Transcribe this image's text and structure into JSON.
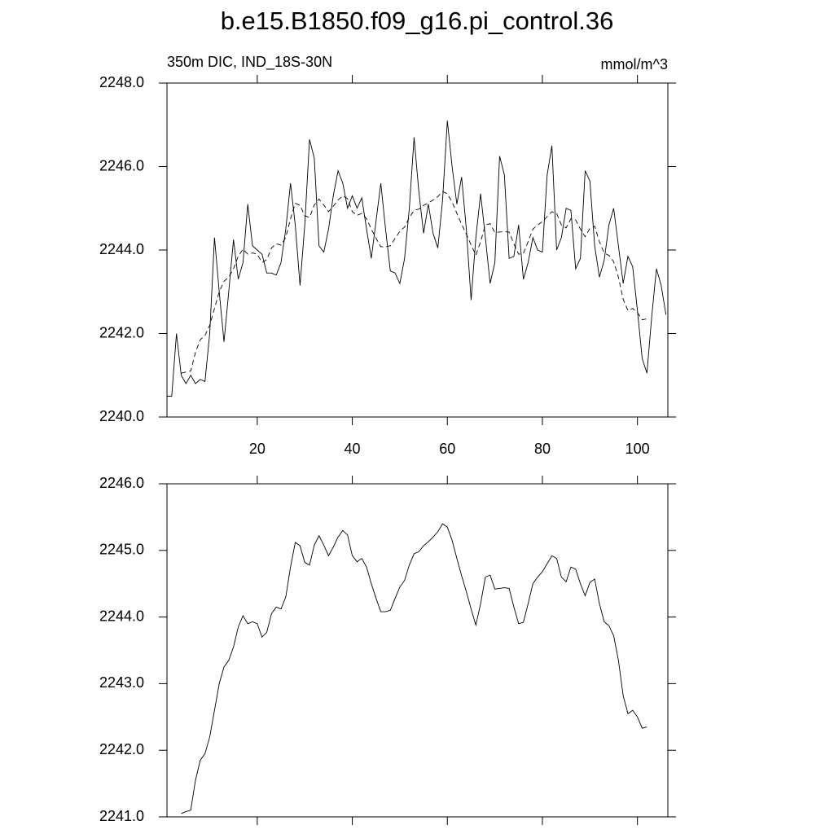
{
  "title": "b.e15.B1850.f09_g16.pi_control.36",
  "chart_data": [
    {
      "type": "line",
      "left_string": "350m DIC, IND_18S-30N",
      "right_string": "mmol/m^3",
      "x": [
        1,
        2,
        3,
        4,
        5,
        6,
        7,
        8,
        9,
        10,
        11,
        12,
        13,
        14,
        15,
        16,
        17,
        18,
        19,
        20,
        21,
        22,
        23,
        24,
        25,
        26,
        27,
        28,
        29,
        30,
        31,
        32,
        33,
        34,
        35,
        36,
        37,
        38,
        39,
        40,
        41,
        42,
        43,
        44,
        45,
        46,
        47,
        48,
        49,
        50,
        51,
        52,
        53,
        54,
        55,
        56,
        57,
        58,
        59,
        60,
        61,
        62,
        63,
        64,
        65,
        66,
        67,
        68,
        69,
        70,
        71,
        72,
        73,
        74,
        75,
        76,
        77,
        78,
        79,
        80,
        81,
        82,
        83,
        84,
        85,
        86,
        87,
        88,
        89,
        90,
        91,
        92,
        93,
        94,
        95,
        96,
        97,
        98,
        99,
        100,
        101,
        102,
        103,
        104,
        105,
        106
      ],
      "series": [
        {
          "color": "#000000",
          "dashed": false,
          "values": [
            2240.5,
            2240.5,
            2242.0,
            2241.0,
            2240.8,
            2241.0,
            2240.8,
            2240.9,
            2240.85,
            2242.0,
            2244.3,
            2243.0,
            2241.8,
            2243.0,
            2244.25,
            2243.3,
            2243.7,
            2245.1,
            2244.1,
            2244.0,
            2243.9,
            2243.45,
            2243.45,
            2243.4,
            2243.7,
            2244.5,
            2245.6,
            2244.6,
            2243.15,
            2244.6,
            2246.65,
            2246.2,
            2244.1,
            2243.95,
            2244.5,
            2245.3,
            2245.9,
            2245.6,
            2245.0,
            2245.3,
            2245.0,
            2245.25,
            2244.5,
            2243.8,
            2244.7,
            2245.6,
            2244.5,
            2243.5,
            2243.45,
            2243.2,
            2243.8,
            2245.0,
            2246.7,
            2245.4,
            2244.4,
            2245.1,
            2244.4,
            2244.05,
            2245.2,
            2247.1,
            2246.0,
            2245.1,
            2245.75,
            2244.5,
            2242.8,
            2244.3,
            2245.35,
            2244.3,
            2243.2,
            2243.7,
            2246.25,
            2245.8,
            2243.8,
            2243.85,
            2244.6,
            2243.3,
            2243.7,
            2244.3,
            2244.0,
            2243.95,
            2245.8,
            2246.5,
            2244.0,
            2244.3,
            2245.0,
            2244.95,
            2243.55,
            2243.8,
            2245.9,
            2245.65,
            2244.1,
            2243.35,
            2243.75,
            2244.6,
            2245.0,
            2244.1,
            2243.2,
            2243.85,
            2243.6,
            2242.55,
            2241.4,
            2241.05,
            2242.4,
            2243.55,
            2243.15,
            2242.45
          ]
        },
        {
          "color": "#000000",
          "dashed": true,
          "values": [
            null,
            null,
            null,
            2241.05,
            2241.08,
            2241.1,
            2241.55,
            2241.85,
            2241.95,
            2242.2,
            2242.6,
            2243.0,
            2243.25,
            2243.35,
            2243.55,
            2243.85,
            2244.02,
            2243.9,
            2243.93,
            2243.9,
            2243.7,
            2243.77,
            2244.05,
            2244.15,
            2244.12,
            2244.3,
            2244.75,
            2245.12,
            2245.07,
            2244.82,
            2244.78,
            2245.08,
            2245.22,
            2245.08,
            2244.92,
            2245.05,
            2245.2,
            2245.3,
            2245.23,
            2244.92,
            2244.83,
            2244.88,
            2244.75,
            2244.5,
            2244.28,
            2244.08,
            2244.08,
            2244.1,
            2244.28,
            2244.45,
            2244.55,
            2244.78,
            2244.95,
            2244.98,
            2245.07,
            2245.13,
            2245.2,
            2245.28,
            2245.4,
            2245.35,
            2245.15,
            2244.88,
            2244.62,
            2244.38,
            2244.12,
            2243.88,
            2244.2,
            2244.6,
            2244.63,
            2244.42,
            2244.43,
            2244.44,
            2244.43,
            2244.15,
            2243.9,
            2243.92,
            2244.2,
            2244.5,
            2244.6,
            2244.68,
            2244.8,
            2244.92,
            2244.88,
            2244.6,
            2244.53,
            2244.75,
            2244.72,
            2244.5,
            2244.32,
            2244.52,
            2244.57,
            2244.2,
            2243.93,
            2243.87,
            2243.72,
            2243.35,
            2242.82,
            2242.55,
            2242.6,
            2242.5,
            2242.33,
            2242.35,
            null,
            null,
            null,
            null
          ]
        }
      ],
      "xlim": [
        1,
        106.4
      ],
      "xticks": [
        20,
        40,
        60,
        80,
        100
      ],
      "show_xtick_labels": true,
      "ylim": [
        2240,
        2248
      ],
      "yticks": [
        {
          "value": 2240,
          "label": "2240.0"
        },
        {
          "value": 2242,
          "label": "2242.0"
        },
        {
          "value": 2244,
          "label": "2244.0"
        },
        {
          "value": 2246,
          "label": "2246.0"
        },
        {
          "value": 2248,
          "label": "2248.0"
        }
      ]
    },
    {
      "type": "line",
      "x": [
        4,
        5,
        6,
        7,
        8,
        9,
        10,
        11,
        12,
        13,
        14,
        15,
        16,
        17,
        18,
        19,
        20,
        21,
        22,
        23,
        24,
        25,
        26,
        27,
        28,
        29,
        30,
        31,
        32,
        33,
        34,
        35,
        36,
        37,
        38,
        39,
        40,
        41,
        42,
        43,
        44,
        45,
        46,
        47,
        48,
        49,
        50,
        51,
        52,
        53,
        54,
        55,
        56,
        57,
        58,
        59,
        60,
        61,
        62,
        63,
        64,
        65,
        66,
        67,
        68,
        69,
        70,
        71,
        72,
        73,
        74,
        75,
        76,
        77,
        78,
        79,
        80,
        81,
        82,
        83,
        84,
        85,
        86,
        87,
        88,
        89,
        90,
        91,
        92,
        93,
        94,
        95,
        96,
        97,
        98,
        99,
        100,
        101,
        102
      ],
      "series": [
        {
          "color": "#000000",
          "dashed": false,
          "values": [
            2241.05,
            2241.08,
            2241.1,
            2241.55,
            2241.85,
            2241.95,
            2242.2,
            2242.6,
            2243.0,
            2243.25,
            2243.35,
            2243.55,
            2243.85,
            2244.02,
            2243.9,
            2243.93,
            2243.9,
            2243.7,
            2243.77,
            2244.05,
            2244.15,
            2244.12,
            2244.3,
            2244.75,
            2245.12,
            2245.07,
            2244.82,
            2244.78,
            2245.08,
            2245.22,
            2245.08,
            2244.92,
            2245.05,
            2245.2,
            2245.3,
            2245.23,
            2244.92,
            2244.83,
            2244.88,
            2244.75,
            2244.5,
            2244.28,
            2244.08,
            2244.08,
            2244.1,
            2244.28,
            2244.45,
            2244.55,
            2244.78,
            2244.95,
            2244.98,
            2245.07,
            2245.13,
            2245.2,
            2245.28,
            2245.4,
            2245.35,
            2245.15,
            2244.88,
            2244.62,
            2244.38,
            2244.12,
            2243.88,
            2244.2,
            2244.6,
            2244.63,
            2244.42,
            2244.43,
            2244.44,
            2244.43,
            2244.15,
            2243.9,
            2243.92,
            2244.2,
            2244.5,
            2244.6,
            2244.68,
            2244.8,
            2244.92,
            2244.88,
            2244.6,
            2244.53,
            2244.75,
            2244.72,
            2244.5,
            2244.32,
            2244.52,
            2244.57,
            2244.2,
            2243.93,
            2243.87,
            2243.72,
            2243.35,
            2242.82,
            2242.55,
            2242.6,
            2242.5,
            2242.33,
            2242.35
          ]
        }
      ],
      "xlim": [
        1,
        106.4
      ],
      "xticks": [
        20,
        40,
        60,
        80,
        100
      ],
      "show_xtick_labels": false,
      "ylim": [
        2241,
        2246
      ],
      "yticks": [
        {
          "value": 2241,
          "label": "2241.0"
        },
        {
          "value": 2242,
          "label": "2242.0"
        },
        {
          "value": 2243,
          "label": "2243.0"
        },
        {
          "value": 2244,
          "label": "2244.0"
        },
        {
          "value": 2245,
          "label": "2245.0"
        },
        {
          "value": 2246,
          "label": "2246.0"
        }
      ]
    }
  ]
}
